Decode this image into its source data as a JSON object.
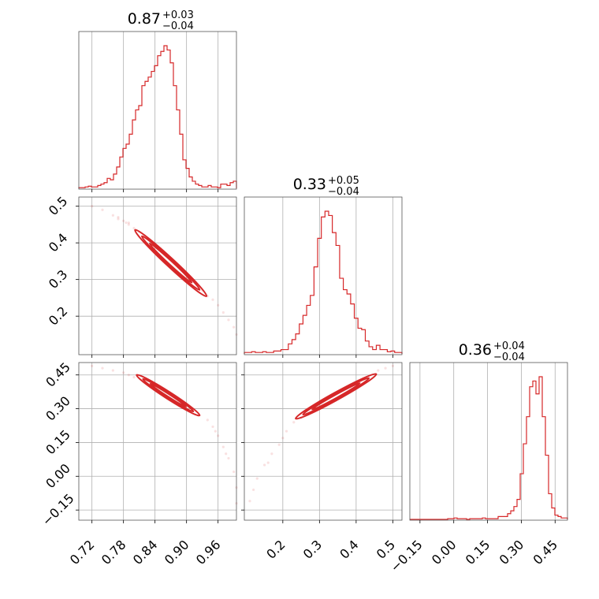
{
  "chart_data": {
    "type": "corner",
    "color": "#d62728",
    "grid": true,
    "parameters": [
      {
        "id": "p0",
        "title": {
          "value": "0.87",
          "upper": "+0.03",
          "lower": "−0.04"
        },
        "range": [
          0.695,
          0.995
        ],
        "ticks": [
          {
            "value": 0.72,
            "label": "0.72"
          },
          {
            "value": 0.78,
            "label": "0.78"
          },
          {
            "value": 0.84,
            "label": "0.84"
          },
          {
            "value": 0.9,
            "label": "0.90"
          },
          {
            "value": 0.96,
            "label": "0.96"
          }
        ],
        "hist": {
          "edges": [
            0.695,
            0.701,
            0.707,
            0.713,
            0.719,
            0.725,
            0.731,
            0.737,
            0.743,
            0.749,
            0.755,
            0.761,
            0.767,
            0.773,
            0.779,
            0.785,
            0.791,
            0.797,
            0.803,
            0.809,
            0.815,
            0.821,
            0.827,
            0.833,
            0.839,
            0.845,
            0.851,
            0.857,
            0.863,
            0.869,
            0.875,
            0.881,
            0.887,
            0.893,
            0.899,
            0.905,
            0.911,
            0.917,
            0.923,
            0.929,
            0.935,
            0.941,
            0.947,
            0.953,
            0.959,
            0.965,
            0.971,
            0.977,
            0.983,
            0.989,
            0.995
          ],
          "counts": [
            0.005,
            0.005,
            0.01,
            0.015,
            0.01,
            0.01,
            0.02,
            0.03,
            0.04,
            0.07,
            0.06,
            0.1,
            0.15,
            0.22,
            0.28,
            0.31,
            0.38,
            0.48,
            0.55,
            0.58,
            0.72,
            0.75,
            0.78,
            0.82,
            0.86,
            0.93,
            0.96,
            1.0,
            0.97,
            0.88,
            0.72,
            0.55,
            0.38,
            0.2,
            0.14,
            0.08,
            0.05,
            0.03,
            0.02,
            0.01,
            0.01,
            0.02,
            0.01,
            0.01,
            0.005,
            0.03,
            0.03,
            0.02,
            0.04,
            0.05
          ]
        }
      },
      {
        "id": "p1",
        "title": {
          "value": "0.33",
          "upper": "+0.05",
          "lower": "−0.04"
        },
        "range": [
          0.095,
          0.525
        ],
        "ticks": [
          {
            "value": 0.2,
            "label": "0.2"
          },
          {
            "value": 0.3,
            "label": "0.3"
          },
          {
            "value": 0.4,
            "label": "0.4"
          },
          {
            "value": 0.5,
            "label": "0.5"
          }
        ],
        "hist": {
          "edges": [
            0.095,
            0.105,
            0.115,
            0.125,
            0.135,
            0.145,
            0.155,
            0.165,
            0.175,
            0.185,
            0.195,
            0.205,
            0.215,
            0.225,
            0.235,
            0.245,
            0.255,
            0.265,
            0.275,
            0.285,
            0.295,
            0.305,
            0.315,
            0.325,
            0.335,
            0.345,
            0.355,
            0.365,
            0.375,
            0.385,
            0.395,
            0.405,
            0.415,
            0.425,
            0.435,
            0.445,
            0.455,
            0.465,
            0.475,
            0.485,
            0.495,
            0.505,
            0.515,
            0.525
          ],
          "counts": [
            0.01,
            0.01,
            0.015,
            0.01,
            0.01,
            0.015,
            0.01,
            0.01,
            0.02,
            0.02,
            0.03,
            0.03,
            0.07,
            0.1,
            0.14,
            0.21,
            0.27,
            0.34,
            0.41,
            0.61,
            0.81,
            0.96,
            1.0,
            0.97,
            0.85,
            0.76,
            0.53,
            0.45,
            0.42,
            0.35,
            0.25,
            0.18,
            0.17,
            0.09,
            0.05,
            0.03,
            0.06,
            0.03,
            0.03,
            0.015,
            0.02,
            0.01,
            0.01
          ]
        }
      },
      {
        "id": "p2",
        "title": {
          "value": "0.36",
          "upper": "+0.04",
          "lower": "−0.04"
        },
        "range": [
          -0.195,
          0.505
        ],
        "ticks": [
          {
            "value": -0.15,
            "label": "−0.15"
          },
          {
            "value": 0.0,
            "label": "0.00"
          },
          {
            "value": 0.15,
            "label": "0.15"
          },
          {
            "value": 0.3,
            "label": "0.30"
          },
          {
            "value": 0.45,
            "label": "0.45"
          }
        ],
        "hist": {
          "edges": [
            -0.195,
            -0.181,
            -0.167,
            -0.153,
            -0.139,
            -0.125,
            -0.111,
            -0.097,
            -0.083,
            -0.069,
            -0.055,
            -0.041,
            -0.027,
            -0.013,
            0.001,
            0.015,
            0.029,
            0.043,
            0.057,
            0.071,
            0.085,
            0.099,
            0.113,
            0.127,
            0.141,
            0.155,
            0.169,
            0.183,
            0.197,
            0.211,
            0.225,
            0.239,
            0.253,
            0.267,
            0.281,
            0.295,
            0.309,
            0.323,
            0.337,
            0.351,
            0.365,
            0.379,
            0.393,
            0.407,
            0.421,
            0.435,
            0.449,
            0.463,
            0.477,
            0.491,
            0.505
          ],
          "counts": [
            0,
            0,
            0,
            0,
            0,
            0,
            0,
            0,
            0,
            0,
            0,
            0,
            0.005,
            0.005,
            0.01,
            0.005,
            0.005,
            0.005,
            0.0,
            0.005,
            0.005,
            0.005,
            0.005,
            0.01,
            0.005,
            0.005,
            0.005,
            0.005,
            0.02,
            0.02,
            0.02,
            0.04,
            0.06,
            0.09,
            0.14,
            0.32,
            0.53,
            0.72,
            0.93,
            0.97,
            0.88,
            1.0,
            0.72,
            0.45,
            0.18,
            0.08,
            0.03,
            0.02,
            0.01,
            0.01
          ]
        }
      }
    ],
    "pairs": [
      {
        "x": "p0",
        "y": "p1",
        "scatter": [
          [
            0.72,
            0.5
          ],
          [
            0.74,
            0.49
          ],
          [
            0.76,
            0.475
          ],
          [
            0.77,
            0.465
          ],
          [
            0.78,
            0.46
          ],
          [
            0.785,
            0.455
          ],
          [
            0.79,
            0.45
          ],
          [
            0.8,
            0.44
          ],
          [
            0.81,
            0.43
          ],
          [
            0.82,
            0.42
          ],
          [
            0.93,
            0.27
          ],
          [
            0.94,
            0.255
          ],
          [
            0.95,
            0.245
          ],
          [
            0.96,
            0.23
          ],
          [
            0.97,
            0.21
          ],
          [
            0.98,
            0.19
          ],
          [
            0.99,
            0.17
          ],
          [
            0.995,
            0.15
          ],
          [
            0.77,
            0.47
          ],
          [
            0.79,
            0.455
          ]
        ],
        "contours": [
          {
            "center": [
              0.87,
              0.345
            ],
            "half_axes": [
              0.068,
              0.008
            ],
            "slope": -1.33
          },
          {
            "center": [
              0.87,
              0.345
            ],
            "half_axes": [
              0.055,
              0.0055
            ],
            "slope": -1.33
          },
          {
            "center": [
              0.87,
              0.345
            ],
            "half_axes": [
              0.04,
              0.0035
            ],
            "slope": -1.33
          }
        ]
      },
      {
        "x": "p0",
        "y": "p2",
        "scatter": [
          [
            0.72,
            0.49
          ],
          [
            0.74,
            0.48
          ],
          [
            0.76,
            0.47
          ],
          [
            0.78,
            0.46
          ],
          [
            0.79,
            0.45
          ],
          [
            0.8,
            0.44
          ],
          [
            0.94,
            0.25
          ],
          [
            0.95,
            0.22
          ],
          [
            0.96,
            0.18
          ],
          [
            0.97,
            0.13
          ],
          [
            0.98,
            0.08
          ],
          [
            0.99,
            0.02
          ],
          [
            0.995,
            -0.05
          ],
          [
            0.995,
            -0.12
          ],
          [
            0.975,
            0.1
          ],
          [
            0.955,
            0.2
          ]
        ],
        "contours": [
          {
            "center": [
              0.865,
              0.36
            ],
            "half_axes": [
              0.06,
              0.011
            ],
            "slope": -1.5
          },
          {
            "center": [
              0.865,
              0.36
            ],
            "half_axes": [
              0.048,
              0.007
            ],
            "slope": -1.5
          },
          {
            "center": [
              0.865,
              0.36
            ],
            "half_axes": [
              0.034,
              0.004
            ],
            "slope": -1.5
          }
        ]
      },
      {
        "x": "p1",
        "y": "p2",
        "scatter": [
          [
            0.5,
            0.49
          ],
          [
            0.48,
            0.48
          ],
          [
            0.46,
            0.47
          ],
          [
            0.25,
            0.26
          ],
          [
            0.23,
            0.24
          ],
          [
            0.21,
            0.2
          ],
          [
            0.19,
            0.14
          ],
          [
            0.17,
            0.1
          ],
          [
            0.15,
            0.05
          ],
          [
            0.13,
            -0.01
          ],
          [
            0.12,
            -0.06
          ],
          [
            0.11,
            -0.11
          ],
          [
            0.2,
            0.17
          ],
          [
            0.16,
            0.06
          ]
        ],
        "contours": [
          {
            "center": [
              0.345,
              0.355
            ],
            "half_axes": [
              0.11,
              0.012
            ],
            "slope": 0.9
          },
          {
            "center": [
              0.345,
              0.355
            ],
            "half_axes": [
              0.09,
              0.008
            ],
            "slope": 0.9
          },
          {
            "center": [
              0.345,
              0.355
            ],
            "half_axes": [
              0.065,
              0.005
            ],
            "slope": 0.9
          }
        ]
      }
    ]
  }
}
